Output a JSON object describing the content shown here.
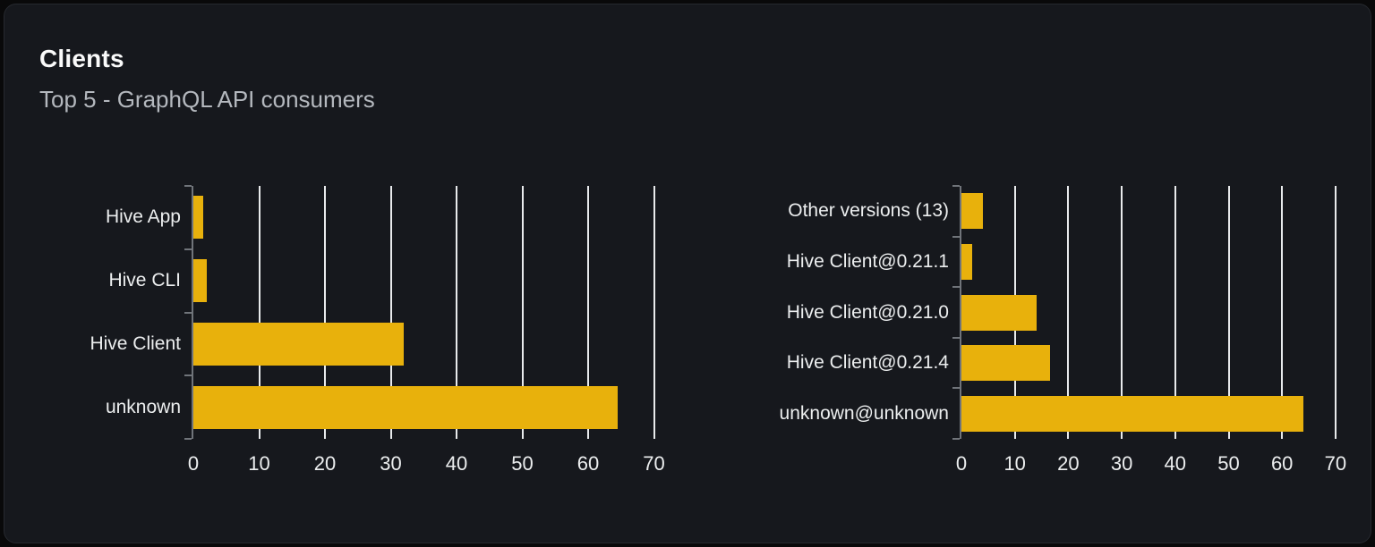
{
  "card": {
    "title": "Clients",
    "subtitle": "Top 5 - GraphQL API consumers"
  },
  "colors": {
    "page_bg": "#09090a",
    "card_bg": "#16181d",
    "card_border": "#26292f",
    "bar": "#e8b10c",
    "gridline": "#e8eaec",
    "axis": "#70747a",
    "title": "#fafafa",
    "subtitle": "#b4b8be",
    "label": "#eceeef"
  },
  "chart_data": [
    {
      "type": "bar",
      "orientation": "horizontal",
      "name": "clients-by-name",
      "categories": [
        "Hive App",
        "Hive CLI",
        "Hive Client",
        "unknown"
      ],
      "values": [
        1.5,
        2,
        32,
        64.5
      ],
      "x_ticks": [
        0,
        10,
        20,
        30,
        40,
        50,
        60,
        70
      ],
      "xlim": [
        0,
        70
      ],
      "xlabel": "",
      "ylabel": "",
      "grid": true,
      "legend": "none",
      "bar_color": "#e8b10c"
    },
    {
      "type": "bar",
      "orientation": "horizontal",
      "name": "clients-by-version",
      "categories": [
        "Other versions (13)",
        "Hive Client@0.21.1",
        "Hive Client@0.21.0",
        "Hive Client@0.21.4",
        "unknown@unknown"
      ],
      "values": [
        4,
        2,
        14,
        16.5,
        64
      ],
      "x_ticks": [
        0,
        10,
        20,
        30,
        40,
        50,
        60,
        70
      ],
      "xlim": [
        0,
        70
      ],
      "xlabel": "",
      "ylabel": "",
      "grid": true,
      "legend": "none",
      "bar_color": "#e8b10c"
    }
  ]
}
